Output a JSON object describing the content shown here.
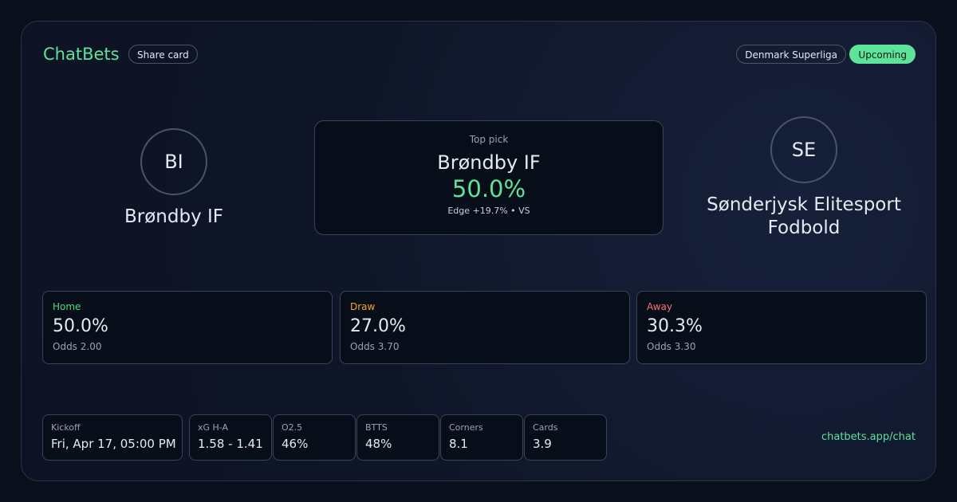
{
  "header": {
    "brand": "ChatBets",
    "share": "Share card",
    "league": "Denmark Superliga",
    "status": "Upcoming"
  },
  "home": {
    "initials": "BI",
    "name": "Brøndby IF"
  },
  "pick": {
    "label": "Top pick",
    "team": "Brøndby IF",
    "probability": "50.0%",
    "edge": "Edge +19.7% • VS"
  },
  "away": {
    "initials": "SE",
    "name": "Sønderjysk Elitesport Fodbold"
  },
  "outcomes": [
    {
      "label": "Home",
      "probability": "50.0%",
      "odds": "Odds 2.00"
    },
    {
      "label": "Draw",
      "probability": "27.0%",
      "odds": "Odds 3.70"
    },
    {
      "label": "Away",
      "probability": "30.3%",
      "odds": "Odds 3.30"
    }
  ],
  "stats": [
    {
      "label": "Kickoff",
      "value": "Fri, Apr 17, 05:00 PM"
    },
    {
      "label": "xG H-A",
      "value": "1.58 - 1.41"
    },
    {
      "label": "O2.5",
      "value": "46%"
    },
    {
      "label": "BTTS",
      "value": "48%"
    },
    {
      "label": "Corners",
      "value": "8.1"
    },
    {
      "label": "Cards",
      "value": "3.9"
    }
  ],
  "footer": {
    "link": "chatbets.app/chat"
  }
}
